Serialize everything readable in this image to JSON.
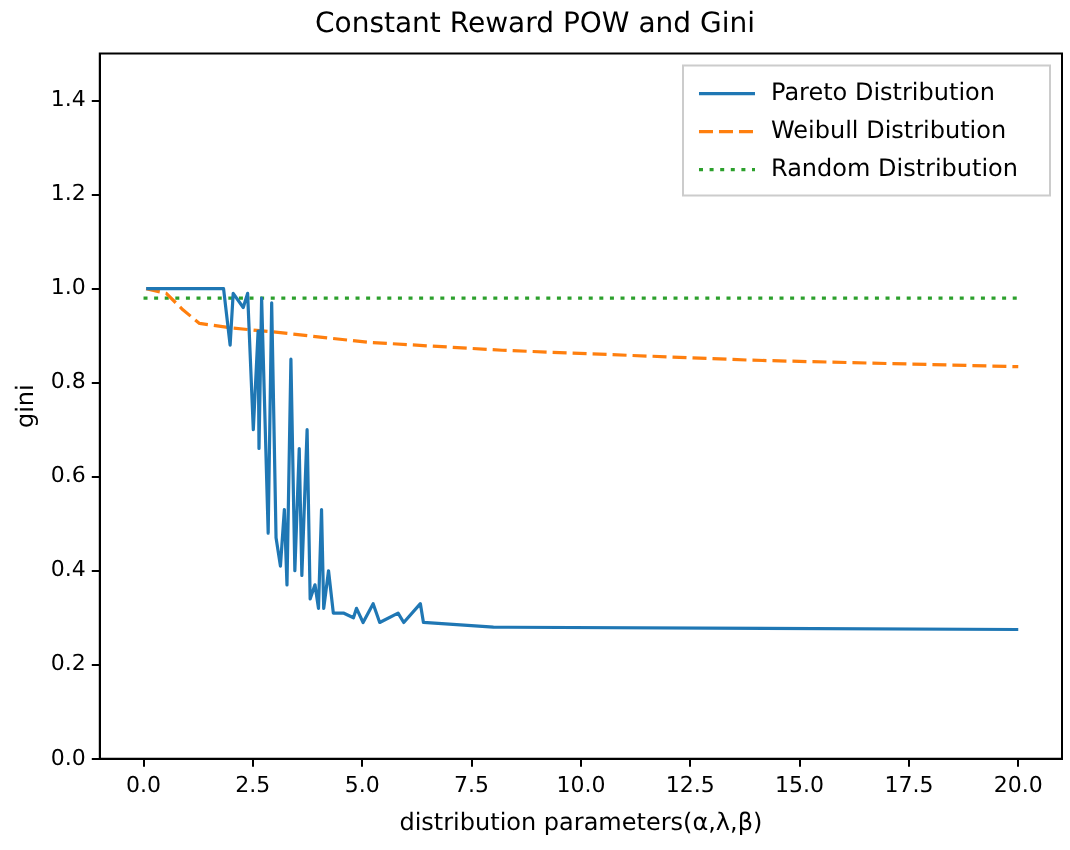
{
  "chart_data": {
    "type": "line",
    "title": "Constant Reward POW and Gini",
    "xlabel": "distribution parameters(α,λ,β)",
    "ylabel": "gini",
    "xlim": [
      -1,
      21
    ],
    "xticks": [
      {
        "value": 0,
        "label": "0.0"
      },
      {
        "value": 2.5,
        "label": "2.5"
      },
      {
        "value": 5,
        "label": "5.0"
      },
      {
        "value": 7.5,
        "label": "7.5"
      },
      {
        "value": 10,
        "label": "10.0"
      },
      {
        "value": 12.5,
        "label": "12.5"
      },
      {
        "value": 15,
        "label": "15.0"
      },
      {
        "value": 17.5,
        "label": "17.5"
      },
      {
        "value": 20,
        "label": "20.0"
      }
    ],
    "ylim": [
      0,
      1.5
    ],
    "yticks": [
      {
        "value": 0,
        "label": "0.0"
      },
      {
        "value": 0.2,
        "label": "0.2"
      },
      {
        "value": 0.4,
        "label": "0.4"
      },
      {
        "value": 0.6,
        "label": "0.6"
      },
      {
        "value": 0.8,
        "label": "0.8"
      },
      {
        "value": 1,
        "label": "1.0"
      },
      {
        "value": 1.2,
        "label": "1.2"
      },
      {
        "value": 1.4,
        "label": "1.4"
      }
    ],
    "grid": false,
    "legend": "top right",
    "marker": "none",
    "series": [
      {
        "name": "Pareto Distribution",
        "color": "#1f77b4",
        "line_style": "solid",
        "x": [
          0.06,
          1.83,
          1.98,
          2.05,
          2.28,
          2.38,
          2.51,
          2.62,
          2.64,
          2.7,
          2.85,
          2.93,
          3.03,
          3.13,
          3.22,
          3.28,
          3.37,
          3.46,
          3.56,
          3.62,
          3.74,
          3.81,
          3.92,
          4.0,
          4.07,
          4.12,
          4.23,
          4.34,
          4.57,
          4.8,
          4.87,
          5.02,
          5.25,
          5.4,
          5.82,
          5.95,
          6.33,
          6.4,
          8.0,
          20.0
        ],
        "values": [
          1.0,
          1.0,
          0.88,
          0.99,
          0.96,
          0.99,
          0.7,
          0.91,
          0.66,
          0.98,
          0.48,
          0.97,
          0.47,
          0.41,
          0.53,
          0.37,
          0.85,
          0.4,
          0.66,
          0.39,
          0.7,
          0.34,
          0.37,
          0.32,
          0.53,
          0.32,
          0.4,
          0.31,
          0.31,
          0.3,
          0.32,
          0.29,
          0.33,
          0.29,
          0.31,
          0.29,
          0.33,
          0.29,
          0.28,
          0.275
        ]
      },
      {
        "name": "Weibull Distribution",
        "color": "#ff7f0e",
        "line_style": "dashed",
        "x": [
          0.06,
          0.52,
          0.9,
          1.28,
          2.05,
          2.97,
          5.12,
          8.2,
          9.26,
          13.85,
          20.0
        ],
        "values": [
          1.0,
          0.99,
          0.955,
          0.926,
          0.916,
          0.908,
          0.886,
          0.869,
          0.865,
          0.848,
          0.834
        ]
      },
      {
        "name": "Random Distribution",
        "color": "#2ca02c",
        "line_style": "dotted",
        "x": [
          0.0,
          20.0
        ],
        "values": [
          0.98,
          0.98
        ]
      }
    ]
  }
}
